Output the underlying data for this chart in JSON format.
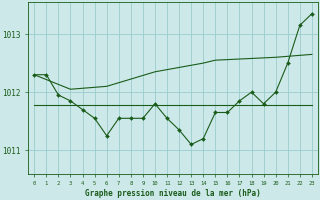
{
  "background_color": "#cce8e8",
  "plot_bg_color": "#cce8e8",
  "grid_color": "#99cccc",
  "line_color": "#1a5c1a",
  "title": "Graphe pression niveau de la mer (hPa)",
  "ylim": [
    1010.6,
    1013.55
  ],
  "xlim": [
    -0.5,
    23.5
  ],
  "yticks": [
    1011,
    1012,
    1013
  ],
  "xticks": [
    0,
    1,
    2,
    3,
    4,
    5,
    6,
    7,
    8,
    9,
    10,
    11,
    12,
    13,
    14,
    15,
    16,
    17,
    18,
    19,
    20,
    21,
    22,
    23
  ],
  "series": {
    "line1_x": [
      0,
      1,
      2,
      3,
      4,
      5,
      6,
      7,
      8,
      9,
      10,
      11,
      12,
      13,
      14,
      15,
      16,
      17,
      18,
      19,
      20,
      21,
      22,
      23
    ],
    "line1_y": [
      1012.3,
      1012.3,
      1011.95,
      1011.85,
      1011.7,
      1011.55,
      1011.25,
      1011.55,
      1011.55,
      1011.55,
      1011.8,
      1011.55,
      1011.35,
      1011.1,
      1011.2,
      1011.65,
      1011.65,
      1011.85,
      1012.0,
      1011.8,
      1012.0,
      1012.5,
      1013.15,
      1013.35
    ],
    "line2_x": [
      0,
      3,
      6,
      10,
      14,
      15,
      20,
      23
    ],
    "line2_y": [
      1012.3,
      1012.05,
      1012.1,
      1012.35,
      1012.5,
      1012.55,
      1012.6,
      1012.65
    ],
    "line3_x": [
      0,
      23
    ],
    "line3_y": [
      1011.78,
      1011.78
    ]
  }
}
